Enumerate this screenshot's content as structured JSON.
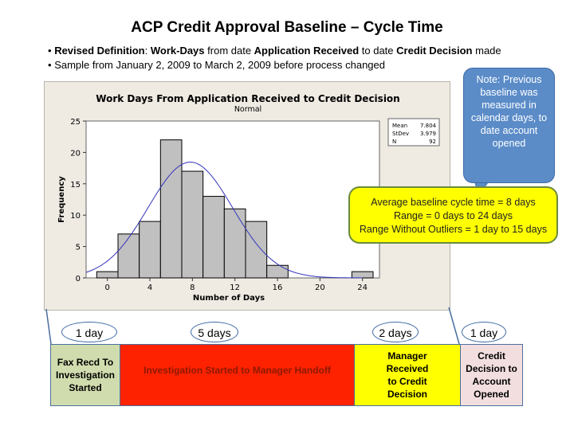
{
  "slide": {
    "title": "ACP Credit Approval Baseline – Cycle Time",
    "bullets": [
      {
        "bold1": "Revised Definition",
        "t1": ": ",
        "bold2": "Work-Days",
        "t2": " from date ",
        "bold3": "Application Received",
        "t3": " to date ",
        "bold4": "Credit Decision",
        "t4": " made"
      },
      {
        "text": "Sample from January 2, 2009 to March 2, 2009 before process changed"
      }
    ],
    "bullet_char": "•"
  },
  "note_callout": {
    "text": "Note: Previous baseline was measured in calendar days, to date account opened"
  },
  "summary_callout": {
    "lines": [
      "Average baseline cycle time = 8 days",
      "Range = 0 days to 24 days",
      "Range Without Outliers = 1 day to 15 days"
    ]
  },
  "process_steps": [
    {
      "duration": "1 day",
      "label": "Fax Recd To Investigation Started",
      "color": "#d1dcae",
      "text_color": "#000000"
    },
    {
      "duration": "5 days",
      "label": "Investigation Started to Manager Handoff",
      "color": "#ff2200",
      "text_color": "#8b1a00"
    },
    {
      "duration": "2 days",
      "label": "Manager Received to Credit Decision",
      "color": "#ffff00",
      "text_color": "#000000"
    },
    {
      "duration": "1 day",
      "label": "Credit Decision to Account Opened",
      "color": "#f3dedf",
      "text_color": "#000000"
    }
  ],
  "chart_data": {
    "type": "bar",
    "title": "Work Days From Application Received to Credit Decision",
    "subtitle": "Normal",
    "xlabel": "Number of Days",
    "ylabel": "Frequency",
    "bin_width": 2,
    "bin_centers": [
      0,
      2,
      4,
      6,
      8,
      10,
      12,
      14,
      16,
      24
    ],
    "values": [
      1,
      7,
      9,
      22,
      17,
      13,
      11,
      9,
      2,
      1
    ],
    "xlim": [
      -2,
      25.6
    ],
    "ylim": [
      0,
      25
    ],
    "xticks": [
      0,
      4,
      8,
      12,
      16,
      20,
      24
    ],
    "yticks": [
      0,
      5,
      10,
      15,
      20,
      25
    ],
    "fit": {
      "type": "normal",
      "mean": 7.804,
      "stdev": 3.979,
      "n": 92
    },
    "stats": [
      {
        "label": "Mean",
        "value": "7.804"
      },
      {
        "label": "StDev",
        "value": "3.979"
      },
      {
        "label": "N",
        "value": "92"
      }
    ],
    "bar_color": "#c0c0c0",
    "curve_color": "#3333bb",
    "grid": false
  }
}
